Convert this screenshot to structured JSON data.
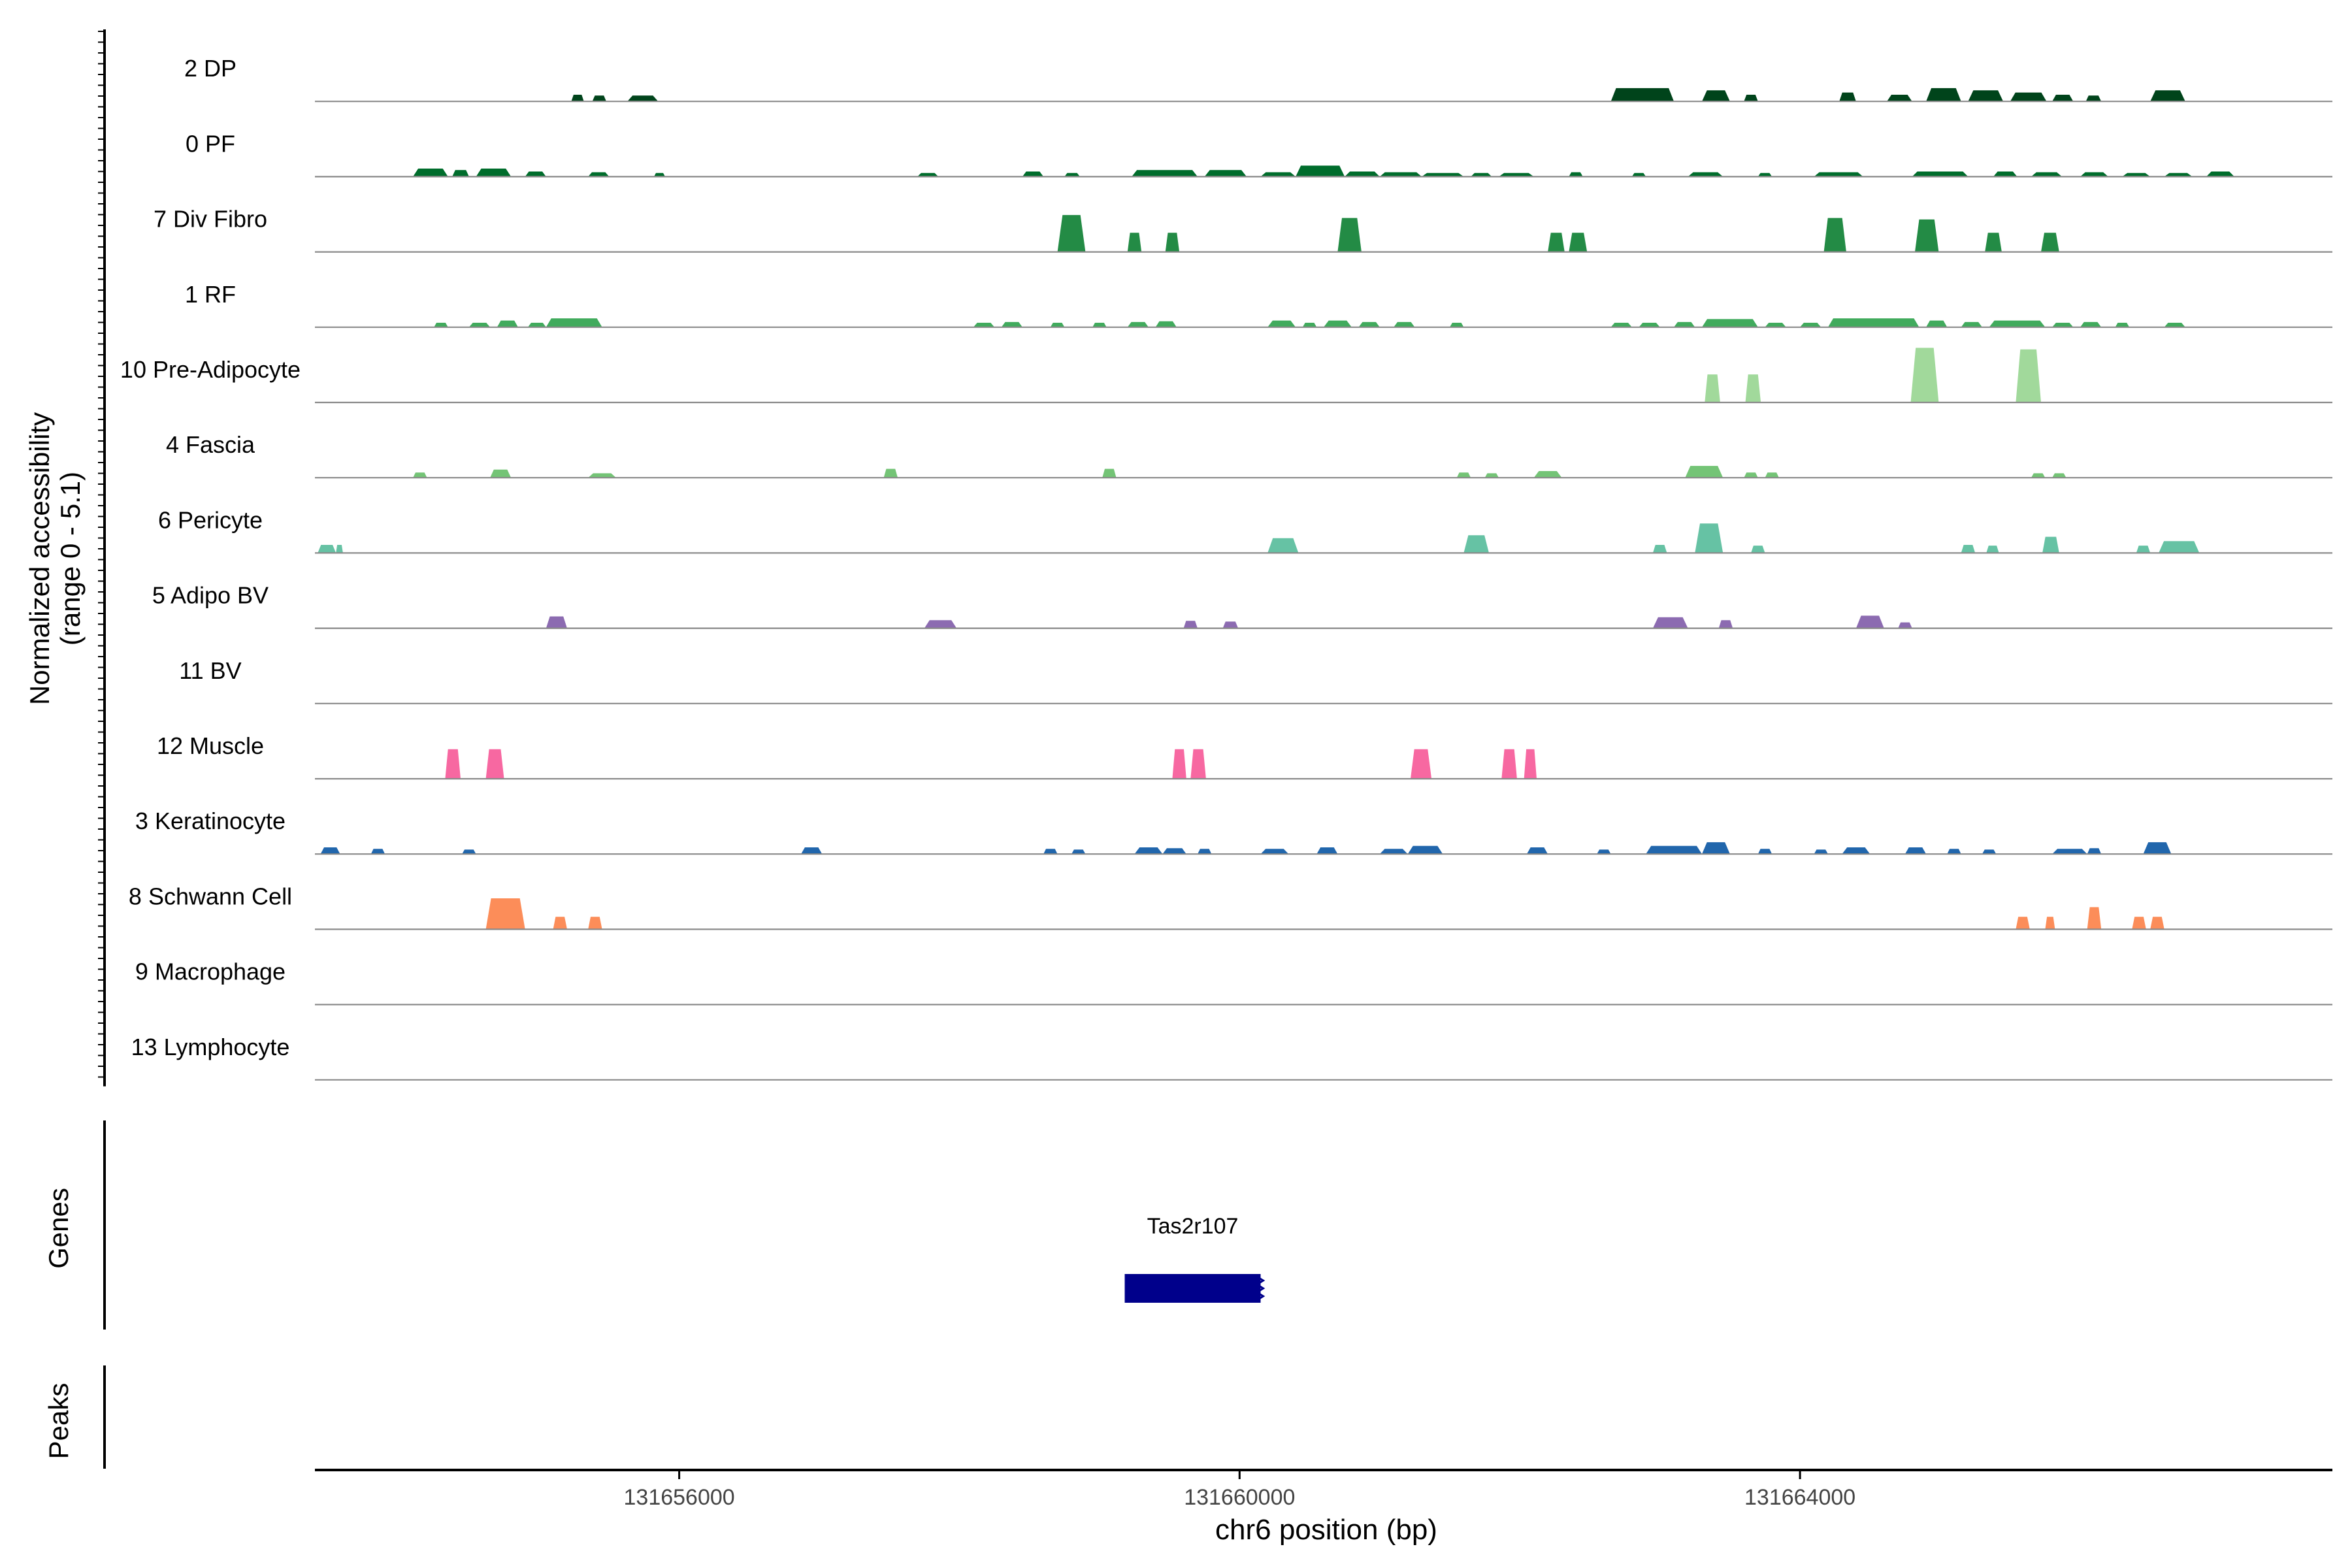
{
  "chart_data": {
    "type": "area",
    "ylabel_line1": "Normalized accessibility",
    "ylabel_line2": "(range 0 - 5.1)",
    "xlabel": "chr6 position (bp)",
    "xlim": [
      131653400,
      131667800
    ],
    "ylim": [
      0,
      5.1
    ],
    "xticks": [
      {
        "value": 131656000,
        "label": "131656000"
      },
      {
        "value": 131660000,
        "label": "131660000"
      },
      {
        "value": 131664000,
        "label": "131664000"
      }
    ],
    "genes_label": "Genes",
    "peaks_label": "Peaks",
    "gene": {
      "name": "Tas2r107",
      "start": 131659180,
      "end": 131660150,
      "color": "#00008B"
    },
    "series": [
      {
        "name": "2 DP",
        "color": "#00441B",
        "peaks": [
          [
            131655230,
            131655320,
            0.45
          ],
          [
            131655380,
            131655480,
            0.4
          ],
          [
            131655630,
            131655850,
            0.4
          ],
          [
            131662650,
            131663100,
            0.9
          ],
          [
            131663300,
            131663500,
            0.75
          ],
          [
            131663600,
            131663700,
            0.45
          ],
          [
            131664280,
            131664400,
            0.6
          ],
          [
            131664620,
            131664800,
            0.45
          ],
          [
            131664900,
            131665150,
            0.9
          ],
          [
            131665200,
            131665450,
            0.75
          ],
          [
            131665500,
            131665760,
            0.6
          ],
          [
            131665800,
            131665950,
            0.45
          ],
          [
            131666040,
            131666150,
            0.4
          ],
          [
            131666500,
            131666750,
            0.75
          ]
        ]
      },
      {
        "name": "0 PF",
        "color": "#006D2C",
        "peaks": [
          [
            131654100,
            131654350,
            0.55
          ],
          [
            131654380,
            131654500,
            0.45
          ],
          [
            131654550,
            131654800,
            0.55
          ],
          [
            131654900,
            131655050,
            0.35
          ],
          [
            131655350,
            131655500,
            0.3
          ],
          [
            131655820,
            131655900,
            0.25
          ],
          [
            131657700,
            131657850,
            0.25
          ],
          [
            131658450,
            131658600,
            0.35
          ],
          [
            131658750,
            131658860,
            0.25
          ],
          [
            131659230,
            131659700,
            0.45
          ],
          [
            131659750,
            131660050,
            0.45
          ],
          [
            131660150,
            131660400,
            0.3
          ],
          [
            131660400,
            131660750,
            0.75
          ],
          [
            131660750,
            131661000,
            0.35
          ],
          [
            131661000,
            131661300,
            0.3
          ],
          [
            131661300,
            131661600,
            0.25
          ],
          [
            131661650,
            131661800,
            0.25
          ],
          [
            131661850,
            131662100,
            0.25
          ],
          [
            131662350,
            131662450,
            0.3
          ],
          [
            131662800,
            131662900,
            0.25
          ],
          [
            131663200,
            131663450,
            0.3
          ],
          [
            131663700,
            131663800,
            0.25
          ],
          [
            131664100,
            131664450,
            0.3
          ],
          [
            131664800,
            131665200,
            0.35
          ],
          [
            131665380,
            131665550,
            0.35
          ],
          [
            131665650,
            131665870,
            0.3
          ],
          [
            131666000,
            131666200,
            0.3
          ],
          [
            131666300,
            131666500,
            0.25
          ],
          [
            131666600,
            131666800,
            0.25
          ],
          [
            131666900,
            131667100,
            0.35
          ]
        ]
      },
      {
        "name": "7 Div Fibro",
        "color": "#238B45",
        "peaks": [
          [
            131658700,
            131658900,
            2.5
          ],
          [
            131659200,
            131659300,
            1.3
          ],
          [
            131659470,
            131659570,
            1.3
          ],
          [
            131660700,
            131660870,
            2.3
          ],
          [
            131662200,
            131662320,
            1.3
          ],
          [
            131662350,
            131662480,
            1.3
          ],
          [
            131664170,
            131664330,
            2.3
          ],
          [
            131664820,
            131664990,
            2.2
          ],
          [
            131665320,
            131665440,
            1.3
          ],
          [
            131665720,
            131665850,
            1.3
          ]
        ]
      },
      {
        "name": "1 RF",
        "color": "#41AB5D",
        "peaks": [
          [
            131654250,
            131654350,
            0.3
          ],
          [
            131654500,
            131654650,
            0.3
          ],
          [
            131654700,
            131654850,
            0.45
          ],
          [
            131654920,
            131655050,
            0.3
          ],
          [
            131655050,
            131655450,
            0.6
          ],
          [
            131658100,
            131658250,
            0.3
          ],
          [
            131658300,
            131658450,
            0.35
          ],
          [
            131658650,
            131658750,
            0.3
          ],
          [
            131658950,
            131659050,
            0.3
          ],
          [
            131659200,
            131659350,
            0.35
          ],
          [
            131659400,
            131659550,
            0.4
          ],
          [
            131660200,
            131660400,
            0.45
          ],
          [
            131660450,
            131660550,
            0.3
          ],
          [
            131660600,
            131660800,
            0.45
          ],
          [
            131660850,
            131661000,
            0.35
          ],
          [
            131661100,
            131661250,
            0.35
          ],
          [
            131661500,
            131661600,
            0.3
          ],
          [
            131662650,
            131662800,
            0.3
          ],
          [
            131662850,
            131663000,
            0.3
          ],
          [
            131663100,
            131663250,
            0.35
          ],
          [
            131663300,
            131663700,
            0.55
          ],
          [
            131663750,
            131663900,
            0.3
          ],
          [
            131664000,
            131664150,
            0.3
          ],
          [
            131664200,
            131664850,
            0.6
          ],
          [
            131664900,
            131665050,
            0.45
          ],
          [
            131665150,
            131665300,
            0.35
          ],
          [
            131665350,
            131665750,
            0.45
          ],
          [
            131665800,
            131665950,
            0.3
          ],
          [
            131666000,
            131666150,
            0.35
          ],
          [
            131666250,
            131666350,
            0.3
          ],
          [
            131666600,
            131666750,
            0.3
          ]
        ]
      },
      {
        "name": "10 Pre-Adipocyte",
        "color": "#A1D99B",
        "peaks": [
          [
            131663320,
            131663430,
            1.9
          ],
          [
            131663610,
            131663720,
            1.9
          ],
          [
            131664790,
            131664990,
            3.7
          ],
          [
            131665540,
            131665720,
            3.6
          ]
        ]
      },
      {
        "name": "4 Fascia",
        "color": "#74C476",
        "peaks": [
          [
            131654100,
            131654200,
            0.35
          ],
          [
            131654650,
            131654800,
            0.55
          ],
          [
            131655350,
            131655550,
            0.3
          ],
          [
            131657460,
            131657560,
            0.6
          ],
          [
            131659020,
            131659120,
            0.6
          ],
          [
            131661550,
            131661650,
            0.35
          ],
          [
            131661750,
            131661850,
            0.3
          ],
          [
            131662100,
            131662300,
            0.45
          ],
          [
            131663180,
            131663450,
            0.8
          ],
          [
            131663600,
            131663700,
            0.35
          ],
          [
            131663750,
            131663850,
            0.35
          ],
          [
            131665650,
            131665750,
            0.3
          ],
          [
            131665800,
            131665900,
            0.3
          ]
        ]
      },
      {
        "name": "6 Pericyte",
        "color": "#66C2A4",
        "peaks": [
          [
            131653420,
            131653550,
            0.55
          ],
          [
            131653550,
            131653600,
            0.55
          ],
          [
            131660200,
            131660420,
            1.0
          ],
          [
            131661600,
            131661780,
            1.2
          ],
          [
            131662950,
            131663050,
            0.55
          ],
          [
            131663250,
            131663450,
            2.0
          ],
          [
            131663650,
            131663750,
            0.5
          ],
          [
            131665150,
            131665250,
            0.55
          ],
          [
            131665330,
            131665420,
            0.5
          ],
          [
            131665730,
            131665850,
            1.1
          ],
          [
            131666400,
            131666500,
            0.5
          ],
          [
            131666560,
            131666850,
            0.8
          ]
        ]
      },
      {
        "name": "5 Adipo BV",
        "color": "#8C6BB1",
        "peaks": [
          [
            131655050,
            131655200,
            0.8
          ],
          [
            131657750,
            131657980,
            0.55
          ],
          [
            131659600,
            131659700,
            0.5
          ],
          [
            131659880,
            131659990,
            0.45
          ],
          [
            131662950,
            131663200,
            0.75
          ],
          [
            131663420,
            131663520,
            0.55
          ],
          [
            131664400,
            131664600,
            0.85
          ],
          [
            131664700,
            131664800,
            0.4
          ]
        ]
      },
      {
        "name": "11 BV",
        "color": "#6A51A3",
        "peaks": []
      },
      {
        "name": "12 Muscle",
        "color": "#F768A1",
        "peaks": [
          [
            131654330,
            131654440,
            2.0
          ],
          [
            131654620,
            131654750,
            2.0
          ],
          [
            131659520,
            131659620,
            2.0
          ],
          [
            131659650,
            131659760,
            2.0
          ],
          [
            131661220,
            131661370,
            2.0
          ],
          [
            131661870,
            131661980,
            2.0
          ],
          [
            131662030,
            131662120,
            2.0
          ]
        ]
      },
      {
        "name": "3 Keratinocyte",
        "color": "#2166AC",
        "peaks": [
          [
            131653440,
            131653580,
            0.45
          ],
          [
            131653800,
            131653900,
            0.35
          ],
          [
            131654450,
            131654550,
            0.3
          ],
          [
            131656870,
            131657020,
            0.45
          ],
          [
            131658600,
            131658700,
            0.35
          ],
          [
            131658800,
            131658900,
            0.3
          ],
          [
            131659250,
            131659450,
            0.45
          ],
          [
            131659450,
            131659620,
            0.4
          ],
          [
            131659700,
            131659800,
            0.35
          ],
          [
            131660150,
            131660350,
            0.35
          ],
          [
            131660550,
            131660700,
            0.45
          ],
          [
            131661000,
            131661200,
            0.35
          ],
          [
            131661200,
            131661450,
            0.55
          ],
          [
            131662050,
            131662200,
            0.45
          ],
          [
            131662550,
            131662650,
            0.3
          ],
          [
            131662900,
            131663300,
            0.55
          ],
          [
            131663300,
            131663500,
            0.8
          ],
          [
            131663700,
            131663800,
            0.35
          ],
          [
            131664100,
            131664200,
            0.3
          ],
          [
            131664300,
            131664500,
            0.45
          ],
          [
            131664750,
            131664900,
            0.45
          ],
          [
            131665050,
            131665150,
            0.35
          ],
          [
            131665300,
            131665400,
            0.3
          ],
          [
            131665800,
            131666050,
            0.35
          ],
          [
            131666050,
            131666150,
            0.4
          ],
          [
            131666450,
            131666650,
            0.8
          ]
        ]
      },
      {
        "name": "8 Schwann Cell",
        "color": "#FC8D59",
        "peaks": [
          [
            131654620,
            131654900,
            2.1
          ],
          [
            131655100,
            131655200,
            0.85
          ],
          [
            131655350,
            131655450,
            0.85
          ],
          [
            131665540,
            131665640,
            0.85
          ],
          [
            131665750,
            131665820,
            0.85
          ],
          [
            131666050,
            131666150,
            1.5
          ],
          [
            131666370,
            131666470,
            0.85
          ],
          [
            131666500,
            131666600,
            0.85
          ]
        ]
      },
      {
        "name": "9 Macrophage",
        "color": "#E7298A",
        "peaks": []
      },
      {
        "name": "13 Lymphocyte",
        "color": "#CE1256",
        "peaks": []
      }
    ]
  }
}
